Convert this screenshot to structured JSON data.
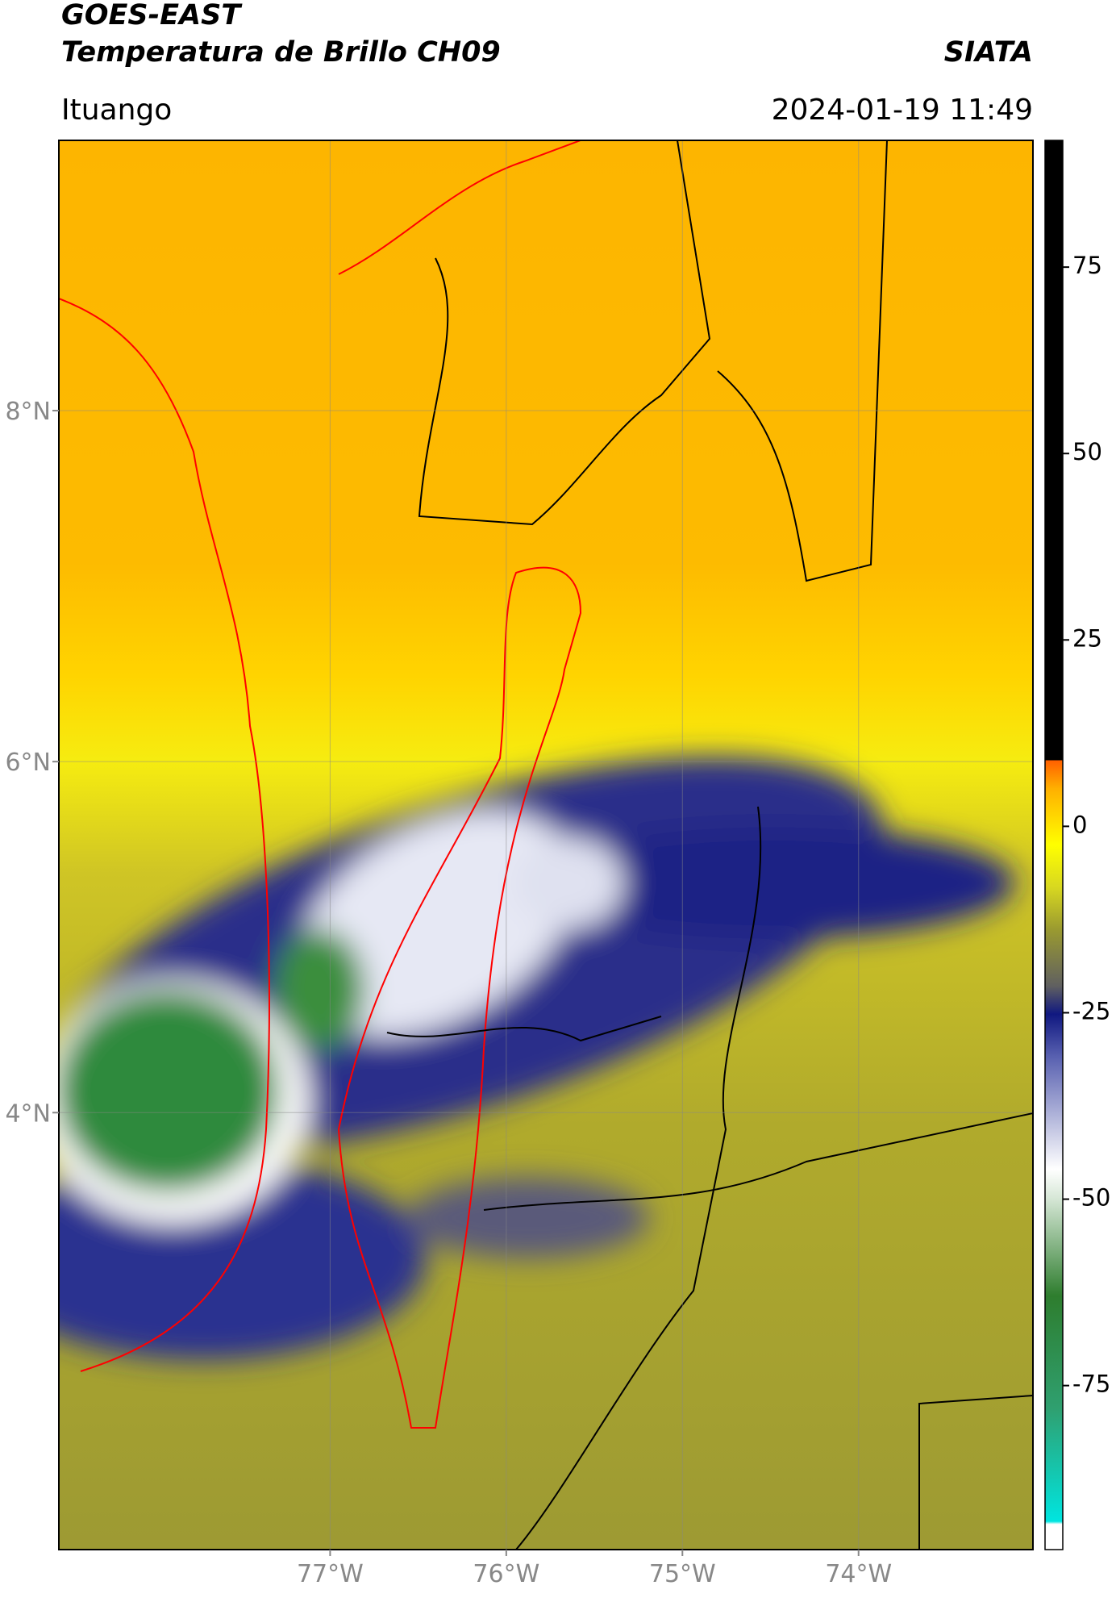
{
  "header": {
    "title": "GOES-EAST",
    "subtitle": "Temperatura de Brillo CH09",
    "source": "SIATA",
    "location": "Ituango",
    "datetime": "2024-01-19 11:49"
  },
  "map": {
    "lat_range": [
      1.51,
      9.54
    ],
    "lon_range": [
      -78.54,
      -73.01
    ],
    "lat_ticks": [
      {
        "value": 8,
        "label": "8°N"
      },
      {
        "value": 6,
        "label": "6°N"
      },
      {
        "value": 4,
        "label": "4°N"
      }
    ],
    "lon_ticks": [
      {
        "value": -77,
        "label": "77°W"
      },
      {
        "value": -76,
        "label": "76°W"
      },
      {
        "value": -75,
        "label": "75°W"
      },
      {
        "value": -74,
        "label": "74°W"
      }
    ]
  },
  "colorbar": {
    "range": [
      -97,
      92
    ],
    "ticks": [
      75,
      50,
      25,
      0,
      -25,
      -50,
      -75
    ]
  }
}
